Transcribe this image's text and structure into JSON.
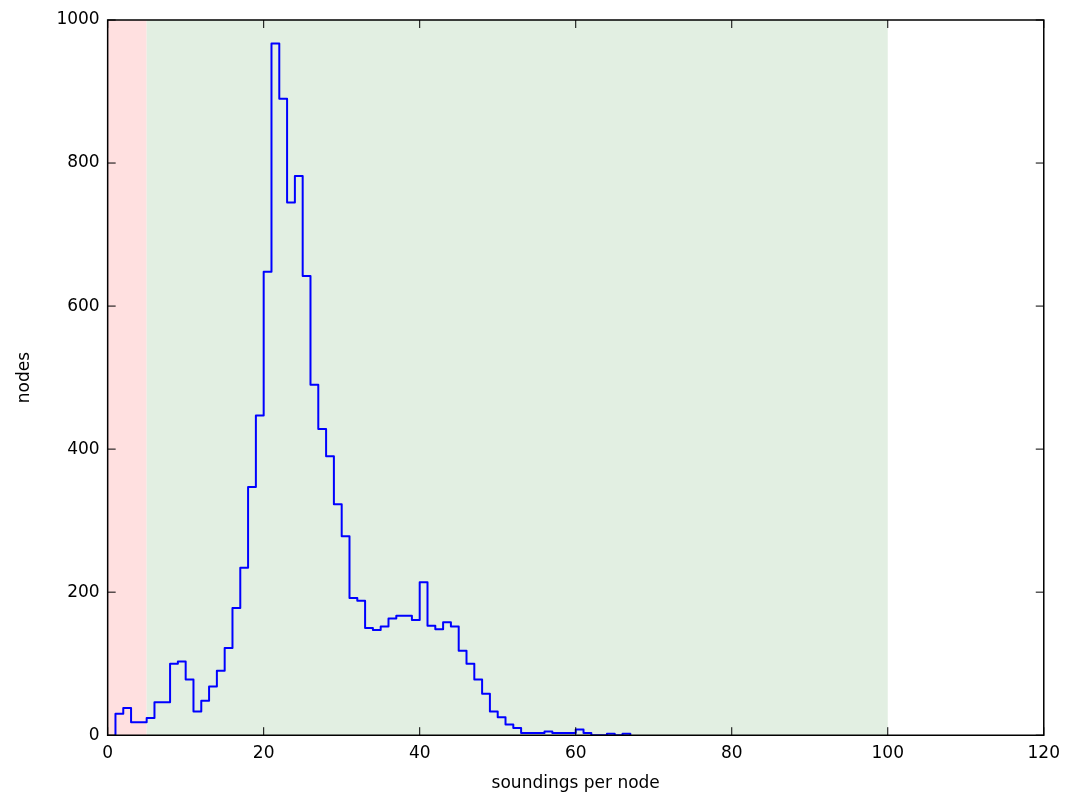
{
  "chart_data": {
    "type": "histogram",
    "xlabel": "soundings per node",
    "ylabel": "nodes",
    "color": "#0000ff",
    "bins": [
      1,
      2,
      3,
      4,
      5,
      6,
      7,
      8,
      9,
      10,
      11,
      12,
      13,
      14,
      15,
      16,
      17,
      18,
      19,
      20,
      21,
      22,
      23,
      24,
      25,
      26,
      27,
      28,
      29,
      30,
      31,
      32,
      33,
      34,
      35,
      36,
      37,
      38,
      39,
      40,
      41,
      42,
      43,
      44,
      45,
      46,
      47,
      48,
      49,
      50,
      51,
      52,
      53,
      54,
      55,
      56,
      57,
      58,
      59,
      60,
      61,
      62,
      63,
      64,
      65,
      66,
      67
    ],
    "values": [
      30,
      38,
      18,
      18,
      24,
      46,
      46,
      100,
      103,
      78,
      33,
      48,
      68,
      90,
      122,
      178,
      234,
      347,
      447,
      648,
      967,
      890,
      745,
      782,
      642,
      490,
      428,
      390,
      323,
      278,
      192,
      188,
      150,
      147,
      152,
      163,
      167,
      167,
      161,
      214,
      153,
      148,
      158,
      152,
      118,
      100,
      78,
      58,
      33,
      25,
      15,
      10,
      3,
      3,
      3,
      5,
      3,
      3,
      3,
      8,
      3,
      0,
      0,
      2,
      0,
      2
    ],
    "xlim": [
      0,
      120
    ],
    "xticks": [
      0,
      20,
      40,
      60,
      80,
      100,
      120
    ],
    "ylim": [
      0,
      1000
    ],
    "yticks": [
      0,
      200,
      400,
      600,
      800,
      1000
    ],
    "grid": false,
    "bands": [
      {
        "axis": "x",
        "from": 0,
        "to": 5,
        "color": "#ffe0e0"
      },
      {
        "axis": "x",
        "from": 5,
        "to": 100,
        "color": "#e2efe2"
      }
    ]
  }
}
